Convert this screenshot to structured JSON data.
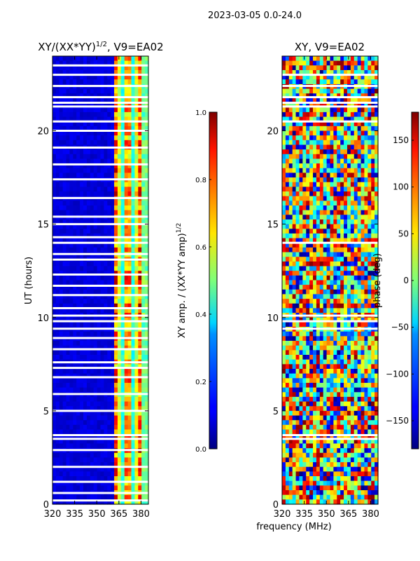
{
  "figure": {
    "suptitle": "2023-03-05 0.0-24.0",
    "xlabel": "frequency (MHz)"
  },
  "chart_data": [
    {
      "type": "heatmap",
      "title_main": "XY/(XX*YY)",
      "title_exp": "1/2",
      "title_tail": ", V9=EA02",
      "xlabel": "",
      "ylabel": "UT (hours)",
      "xlim": [
        320,
        385
      ],
      "ylim": [
        0,
        24
      ],
      "xticks": [
        320,
        335,
        350,
        365,
        380
      ],
      "yticks": [
        0,
        5,
        10,
        15,
        20
      ],
      "colorbar": {
        "label_main": "XY amp. / (XX*YY amp)",
        "label_exp": "1/2",
        "range": [
          0.0,
          1.0
        ],
        "ticks": [
          "0.0",
          "0.2",
          "0.4",
          "0.6",
          "0.8",
          "1.0"
        ],
        "colormap": "jet"
      },
      "description_bands": [
        {
          "freq_range": [
            320,
            362
          ],
          "level": "low (~0.0-0.1)"
        },
        {
          "freq_range": [
            362,
            381
          ],
          "level": "high (~0.4-0.9)"
        }
      ],
      "blank_ut_hours": [
        0.2,
        0.6,
        1.2,
        2.0,
        2.9,
        3.5,
        3.7,
        5.0,
        5.9,
        6.8,
        7.3,
        7.6,
        8.3,
        8.9,
        9.4,
        9.8,
        10.1,
        10.5,
        11.2,
        11.7,
        12.3,
        13.1,
        13.4,
        14.0,
        14.3,
        15.0,
        15.4,
        16.4,
        17.4,
        18.2,
        19.1,
        20.0,
        20.5,
        21.3,
        21.5,
        21.8,
        22.4,
        23.0,
        23.5
      ]
    },
    {
      "type": "heatmap",
      "title": "XY, V9=EA02",
      "xlabel": "frequency (MHz)",
      "ylabel": "",
      "xlim": [
        320,
        385
      ],
      "ylim": [
        0,
        24
      ],
      "xticks": [
        320,
        335,
        350,
        365,
        380
      ],
      "yticks": [
        0,
        5,
        10,
        15,
        20
      ],
      "colorbar": {
        "label": "phase (deg)",
        "range": [
          -180,
          180
        ],
        "ticks": [
          "−150",
          "−100",
          "−50",
          "0",
          "50",
          "100",
          "150"
        ],
        "tick_values": [
          -150,
          -100,
          -50,
          0,
          50,
          100,
          150
        ],
        "colormap": "jet"
      },
      "description_bands": [
        {
          "freq_range": [
            320,
            385
          ],
          "level": "full range, noisy (-180 to 180 deg)"
        }
      ],
      "blank_ut_hours": [
        3.5,
        3.7,
        9.4,
        9.8,
        10.1,
        14.0,
        20.5,
        21.3,
        21.5,
        21.8,
        22.4,
        23.0
      ]
    }
  ]
}
